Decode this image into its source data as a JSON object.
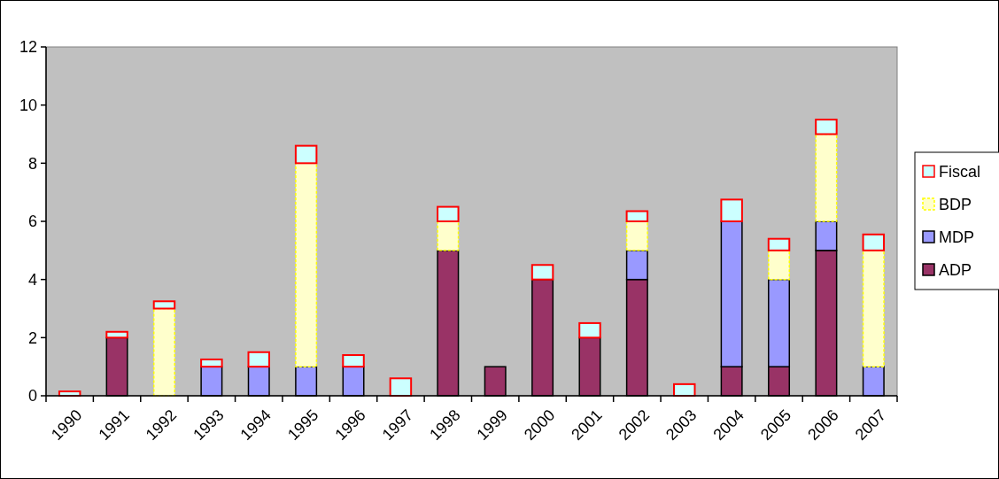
{
  "chart_data": {
    "type": "bar",
    "stacked": true,
    "categories": [
      "1990",
      "1991",
      "1992",
      "1993",
      "1994",
      "1995",
      "1996",
      "1997",
      "1998",
      "1999",
      "2000",
      "2001",
      "2002",
      "2003",
      "2004",
      "2005",
      "2006",
      "2007"
    ],
    "series": [
      {
        "name": "ADP",
        "color": "#993366",
        "values": [
          0,
          2,
          0,
          0,
          0,
          0,
          0,
          0,
          5,
          1,
          4,
          2,
          4,
          0,
          1,
          1,
          5,
          0
        ]
      },
      {
        "name": "MDP",
        "color": "#9999ff",
        "values": [
          0,
          0,
          0,
          1,
          1,
          1,
          1,
          0,
          0,
          0,
          0,
          0,
          1,
          0,
          5,
          3,
          1,
          1
        ]
      },
      {
        "name": "BDP",
        "color": "#ffffcc",
        "values": [
          0,
          0,
          3,
          0,
          0,
          7,
          0,
          0,
          1,
          0,
          0,
          0,
          1,
          0,
          0,
          1,
          3,
          4
        ]
      },
      {
        "name": "Fiscal",
        "color": "#ccffff",
        "values": [
          0.15,
          0.2,
          0.25,
          0.25,
          0.5,
          0.6,
          0.4,
          0.6,
          0.5,
          0,
          0.5,
          0.5,
          0.35,
          0.4,
          0.75,
          0.4,
          0.5,
          0.55
        ]
      }
    ],
    "ylim": [
      0,
      12
    ],
    "yticks": [
      0,
      2,
      4,
      6,
      8,
      10,
      12
    ],
    "grid": false,
    "legend": "right"
  }
}
